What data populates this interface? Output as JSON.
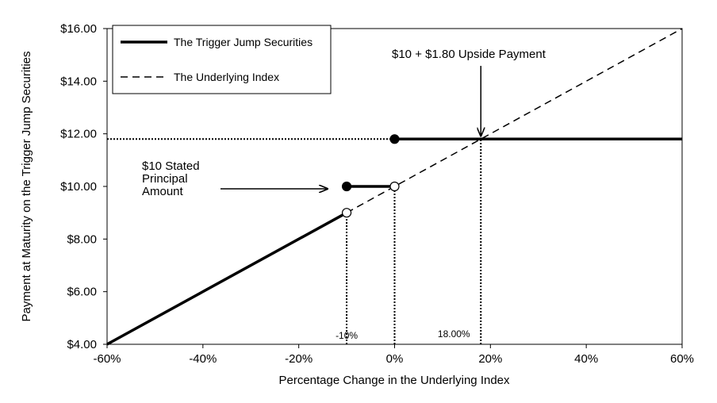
{
  "chart_data": {
    "type": "line",
    "xlabel": "Percentage Change in the Underlying Index",
    "ylabel": "Payment at Maturity on the Trigger Jump Securities",
    "xlim": [
      -60,
      60
    ],
    "ylim": [
      4,
      16
    ],
    "x_ticks": [
      -60,
      -40,
      -20,
      0,
      20,
      40,
      60
    ],
    "x_tick_labels": [
      "-60%",
      "-40%",
      "-20%",
      "0%",
      "20%",
      "40%",
      "60%"
    ],
    "y_ticks": [
      4,
      6,
      8,
      10,
      12,
      14,
      16
    ],
    "y_tick_labels": [
      "$4.00",
      "$6.00",
      "$8.00",
      "$10.00",
      "$12.00",
      "$14.00",
      "$16.00"
    ],
    "grid": false,
    "legend_position": "top-left",
    "series": [
      {
        "name": "The Trigger Jump Securities",
        "style": "solid",
        "segments": [
          [
            [
              -60,
              4
            ],
            [
              -10,
              9
            ]
          ],
          [
            [
              -10,
              10
            ],
            [
              0,
              10
            ]
          ],
          [
            [
              0,
              11.8
            ],
            [
              60,
              11.8
            ]
          ]
        ]
      },
      {
        "name": "The Underlying Index",
        "style": "dashed",
        "segments": [
          [
            [
              -10,
              9
            ],
            [
              60,
              16
            ]
          ]
        ]
      }
    ],
    "markers": [
      {
        "x": -10,
        "y": 10,
        "filled": true
      },
      {
        "x": 0,
        "y": 11.8,
        "filled": true
      },
      {
        "x": -10,
        "y": 9,
        "filled": false
      },
      {
        "x": 0,
        "y": 10,
        "filled": false
      }
    ],
    "reference_lines": [
      {
        "from": [
          -60,
          11.8
        ],
        "to": [
          0,
          11.8
        ]
      },
      {
        "from": [
          -10,
          4
        ],
        "to": [
          -10,
          9
        ]
      },
      {
        "from": [
          0,
          4
        ],
        "to": [
          0,
          10
        ]
      },
      {
        "from": [
          18,
          4
        ],
        "to": [
          18,
          11.8
        ]
      }
    ],
    "annotations": {
      "upside_payment": {
        "text": "$10 + $1.80 Upside Payment",
        "arrow_to": [
          18,
          11.8
        ]
      },
      "stated_principal": {
        "lines": [
          "$10 Stated",
          "Principal",
          "Amount"
        ],
        "arrow_to": [
          -14,
          10
        ]
      },
      "trigger_label": {
        "text": "-10%",
        "x": -10
      },
      "upside_label": {
        "text": "18.00%",
        "x": 18
      }
    }
  }
}
